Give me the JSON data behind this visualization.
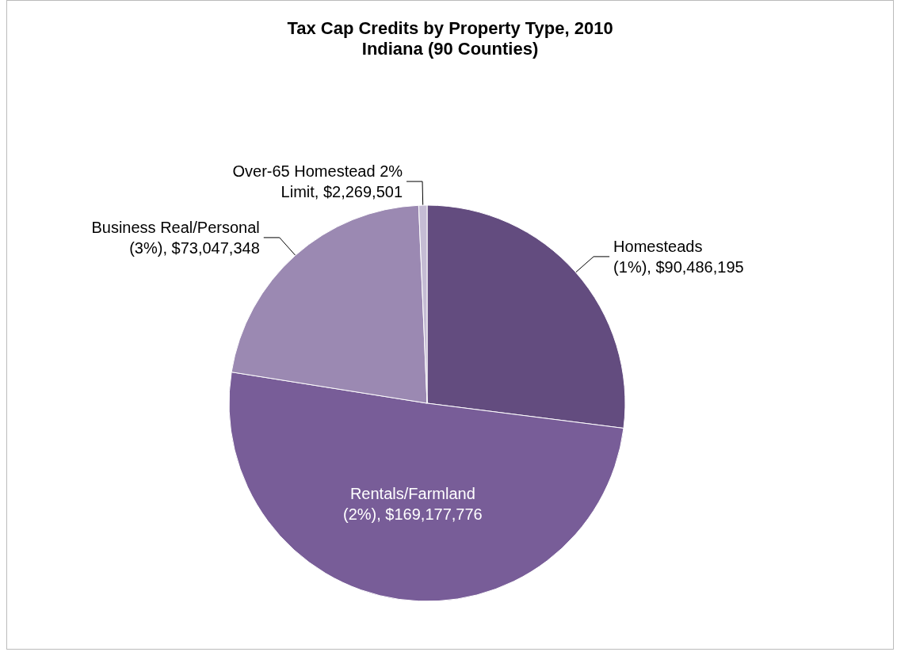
{
  "chart_data": {
    "type": "pie",
    "title": "Tax Cap Credits by Property Type, 2010",
    "subtitle": "Indiana (90 Counties)",
    "categories": [
      "Homesteads (1%)",
      "Rentals/Farmland (2%)",
      "Business Real/Personal (3%)",
      "Over-65 Homestead 2% Limit"
    ],
    "values": [
      90486195,
      169177776,
      73047348,
      2269501
    ],
    "value_labels": [
      "$90,486,195",
      "$169,177,776",
      "$73,047,348",
      "$2,269,501"
    ],
    "colors": [
      "#634c7f",
      "#785d98",
      "#9b89b2",
      "#c5bcd4"
    ],
    "legend": false
  }
}
